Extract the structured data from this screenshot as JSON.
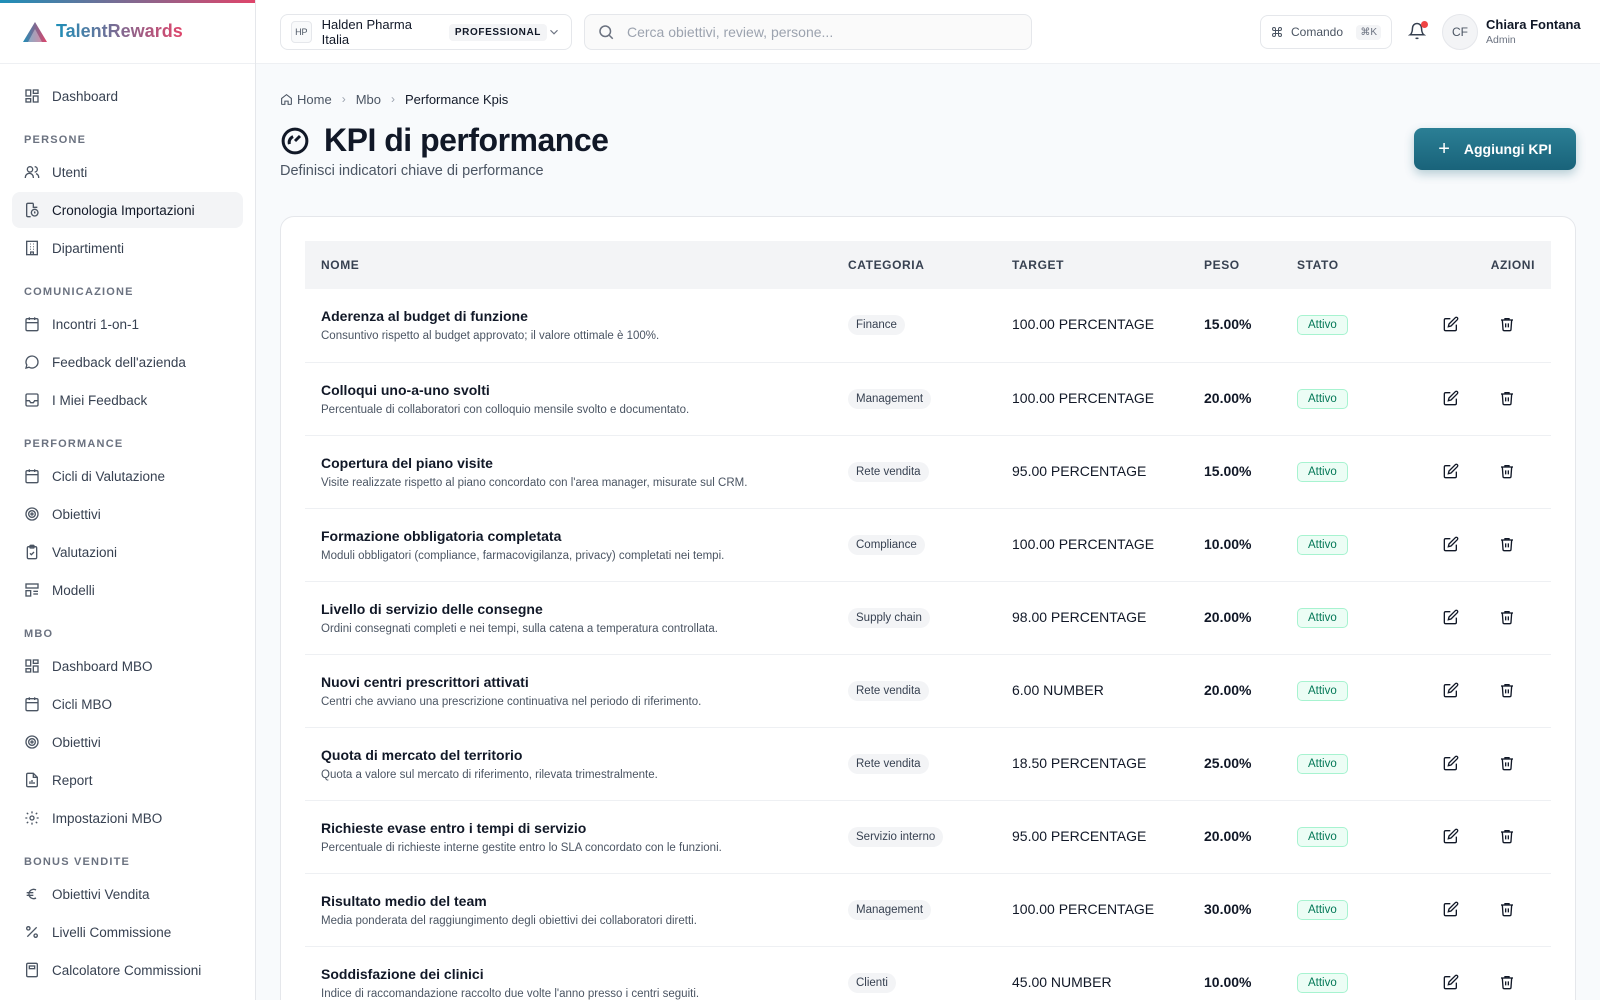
{
  "brand": {
    "name": "TalentRewards"
  },
  "sidebar": {
    "top": [
      {
        "label": "Dashboard",
        "icon": "dashboard-icon"
      }
    ],
    "sections": [
      {
        "title": "PERSONE",
        "items": [
          {
            "label": "Utenti",
            "icon": "users-icon"
          },
          {
            "label": "Cronologia Importazioni",
            "icon": "file-history-icon",
            "active": true
          },
          {
            "label": "Dipartimenti",
            "icon": "building-icon"
          }
        ]
      },
      {
        "title": "COMUNICAZIONE",
        "items": [
          {
            "label": "Incontri 1-on-1",
            "icon": "calendar-icon"
          },
          {
            "label": "Feedback dell'azienda",
            "icon": "message-icon"
          },
          {
            "label": "I Miei Feedback",
            "icon": "inbox-icon"
          }
        ]
      },
      {
        "title": "PERFORMANCE",
        "items": [
          {
            "label": "Cicli di Valutazione",
            "icon": "calendar-icon"
          },
          {
            "label": "Obiettivi",
            "icon": "target-icon"
          },
          {
            "label": "Valutazioni",
            "icon": "clipboard-check-icon"
          },
          {
            "label": "Modelli",
            "icon": "template-icon"
          }
        ]
      },
      {
        "title": "MBO",
        "items": [
          {
            "label": "Dashboard MBO",
            "icon": "dashboard-icon"
          },
          {
            "label": "Cicli MBO",
            "icon": "calendar-icon"
          },
          {
            "label": "Obiettivi",
            "icon": "target-icon"
          },
          {
            "label": "Report",
            "icon": "report-icon"
          },
          {
            "label": "Impostazioni MBO",
            "icon": "gear-icon"
          }
        ]
      },
      {
        "title": "BONUS VENDITE",
        "items": [
          {
            "label": "Obiettivi Vendita",
            "icon": "euro-icon"
          },
          {
            "label": "Livelli Commissione",
            "icon": "percent-icon"
          },
          {
            "label": "Calcolatore Commissioni",
            "icon": "calculator-icon"
          }
        ]
      }
    ]
  },
  "topbar": {
    "org_initials": "HP",
    "org_name": "Halden Pharma Italia",
    "plan": "PROFESSIONAL",
    "search_placeholder": "Cerca obiettivi, review, persone...",
    "command_label": "Comando",
    "command_kbd": "⌘K",
    "user_initials": "CF",
    "user_name": "Chiara Fontana",
    "user_role": "Admin"
  },
  "breadcrumb": {
    "home": "Home",
    "mbo": "Mbo",
    "current": "Performance Kpis"
  },
  "page": {
    "title": "KPI di performance",
    "subtitle": "Definisci indicatori chiave di performance",
    "add_button": "Aggiungi KPI"
  },
  "table": {
    "headers": {
      "name": "NOME",
      "category": "CATEGORIA",
      "target": "TARGET",
      "weight": "PESO",
      "status": "STATO",
      "actions": "AZIONI"
    },
    "rows": [
      {
        "name": "Aderenza al budget di funzione",
        "desc": "Consuntivo rispetto al budget approvato; il valore ottimale è 100%.",
        "category": "Finance",
        "target": "100.00 PERCENTAGE",
        "weight": "15.00%",
        "status": "Attivo"
      },
      {
        "name": "Colloqui uno-a-uno svolti",
        "desc": "Percentuale di collaboratori con colloquio mensile svolto e documentato.",
        "category": "Management",
        "target": "100.00 PERCENTAGE",
        "weight": "20.00%",
        "status": "Attivo"
      },
      {
        "name": "Copertura del piano visite",
        "desc": "Visite realizzate rispetto al piano concordato con l'area manager, misurate sul CRM.",
        "category": "Rete vendita",
        "target": "95.00 PERCENTAGE",
        "weight": "15.00%",
        "status": "Attivo"
      },
      {
        "name": "Formazione obbligatoria completata",
        "desc": "Moduli obbligatori (compliance, farmacovigilanza, privacy) completati nei tempi.",
        "category": "Compliance",
        "target": "100.00 PERCENTAGE",
        "weight": "10.00%",
        "status": "Attivo"
      },
      {
        "name": "Livello di servizio delle consegne",
        "desc": "Ordini consegnati completi e nei tempi, sulla catena a temperatura controllata.",
        "category": "Supply chain",
        "target": "98.00 PERCENTAGE",
        "weight": "20.00%",
        "status": "Attivo"
      },
      {
        "name": "Nuovi centri prescrittori attivati",
        "desc": "Centri che avviano una prescrizione continuativa nel periodo di riferimento.",
        "category": "Rete vendita",
        "target": "6.00 NUMBER",
        "weight": "20.00%",
        "status": "Attivo"
      },
      {
        "name": "Quota di mercato del territorio",
        "desc": "Quota a valore sul mercato di riferimento, rilevata trimestralmente.",
        "category": "Rete vendita",
        "target": "18.50 PERCENTAGE",
        "weight": "25.00%",
        "status": "Attivo"
      },
      {
        "name": "Richieste evase entro i tempi di servizio",
        "desc": "Percentuale di richieste interne gestite entro lo SLA concordato con le funzioni.",
        "category": "Servizio interno",
        "target": "95.00 PERCENTAGE",
        "weight": "20.00%",
        "status": "Attivo"
      },
      {
        "name": "Risultato medio del team",
        "desc": "Media ponderata del raggiungimento degli obiettivi dei collaboratori diretti.",
        "category": "Management",
        "target": "100.00 PERCENTAGE",
        "weight": "30.00%",
        "status": "Attivo"
      },
      {
        "name": "Soddisfazione dei clinici",
        "desc": "Indice di raccomandazione raccolto due volte l'anno presso i centri seguiti.",
        "category": "Clienti",
        "target": "45.00 NUMBER",
        "weight": "10.00%",
        "status": "Attivo"
      }
    ]
  }
}
